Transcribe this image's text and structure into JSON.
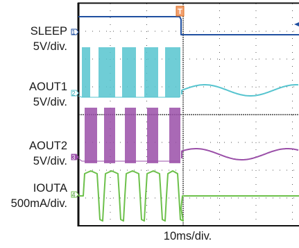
{
  "chart_data": {
    "type": "line",
    "title": "",
    "time_scale": "10ms/div.",
    "grid": true,
    "trigger_marker": "T",
    "channels": [
      {
        "id": "1",
        "name": "SLEEP",
        "scale": "5V/div.",
        "color": "#1f4fa0",
        "description_points": [
          [
            0,
            "high"
          ],
          [
            28,
            "high"
          ],
          [
            29,
            "low"
          ],
          [
            60,
            "low"
          ]
        ]
      },
      {
        "id": "2",
        "name": "AOUT1",
        "scale": "5V/div.",
        "color": "#56c4cf"
      },
      {
        "id": "3",
        "name": "AOUT2",
        "scale": "5V/div.",
        "color": "#9a4fa8"
      },
      {
        "id": "4",
        "name": "IOUTA",
        "scale": "500mA/div.",
        "color": "#6cc04a"
      }
    ]
  }
}
